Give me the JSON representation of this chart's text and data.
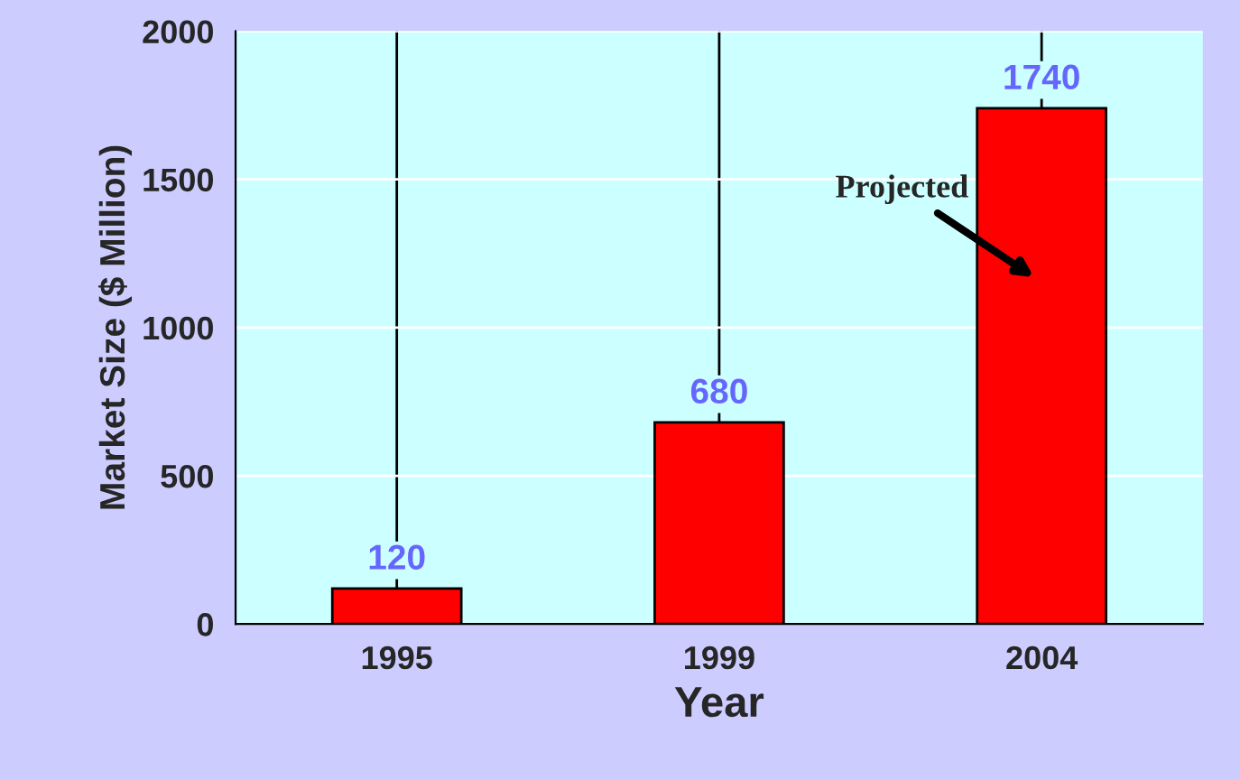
{
  "chart_data": {
    "type": "bar",
    "xlabel": "Year",
    "ylabel": "Market Size ($ Million)",
    "categories": [
      "1995",
      "1999",
      "2004"
    ],
    "values": [
      120,
      680,
      1740
    ],
    "color": "#ff0000",
    "ylim": [
      0,
      2000
    ],
    "yticks": [
      0,
      500,
      1000,
      1500,
      2000
    ],
    "data_labels": true,
    "grid": true,
    "annotations": [
      "Projected"
    ]
  }
}
